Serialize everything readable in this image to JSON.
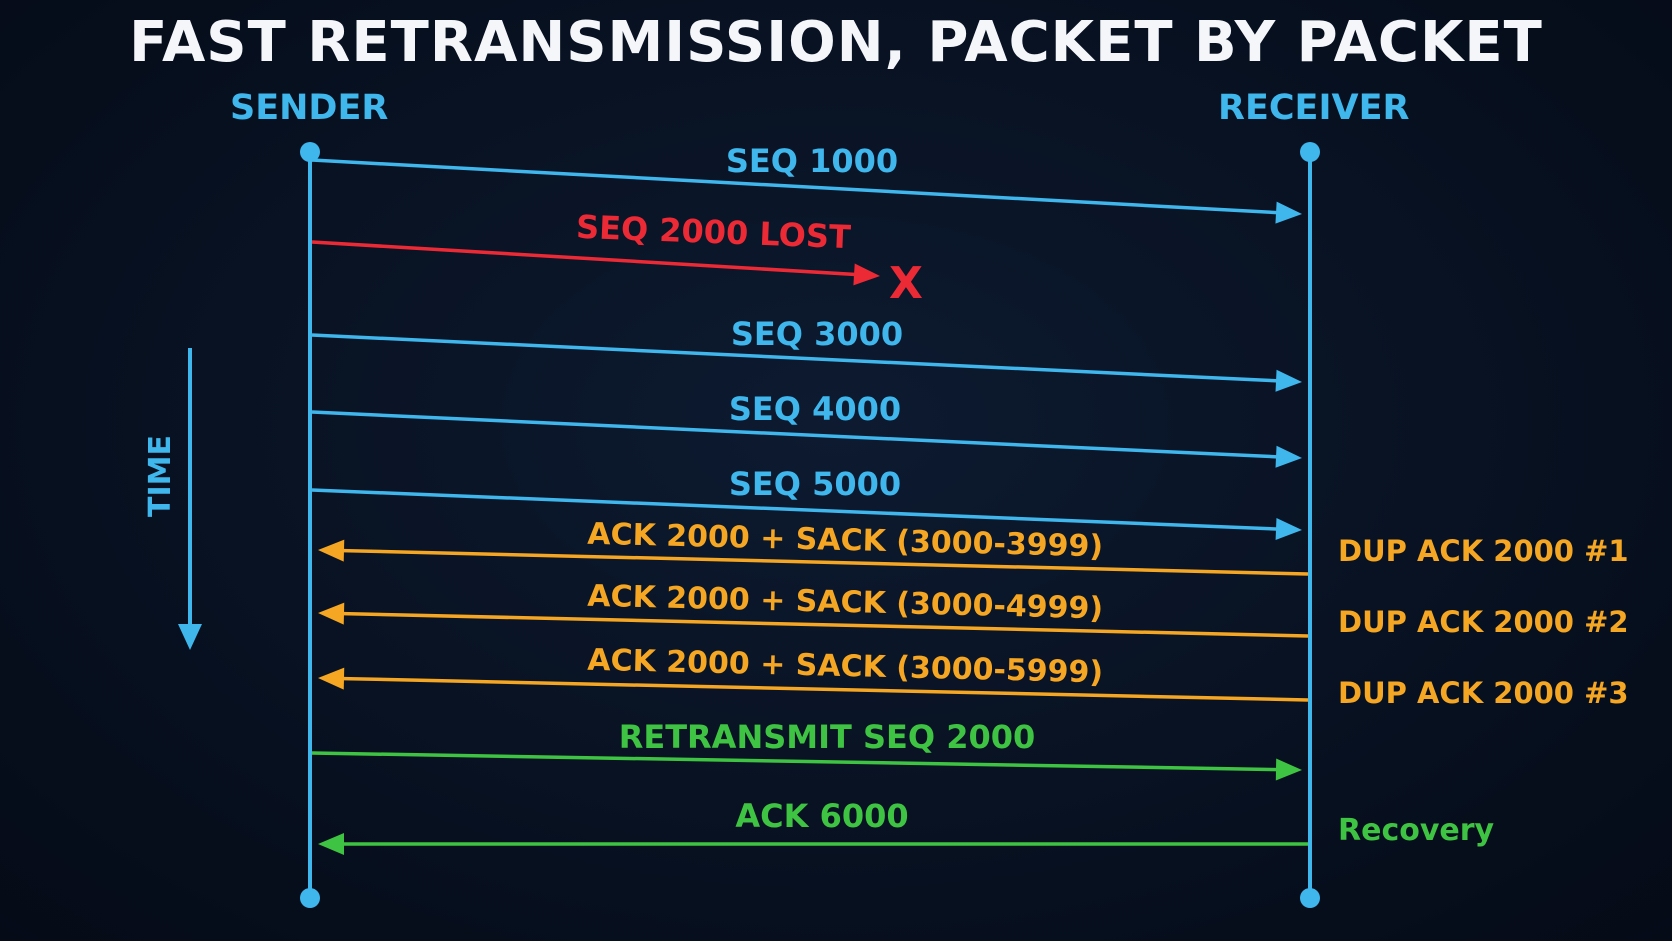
{
  "title": "FAST RETRANSMISSION, PACKET BY PACKET",
  "actors": {
    "sender": "SENDER",
    "receiver": "RECEIVER"
  },
  "time_label": "TIME",
  "lost_marker": "X",
  "colors": {
    "background": "#07101f",
    "data": "#3fb6ec",
    "lost": "#ec2a35",
    "ack": "#f5a623",
    "retransmit": "#3ec442",
    "title": "#f4f6fa"
  },
  "messages": [
    {
      "id": "seq-1000",
      "label": "SEQ 1000",
      "direction": "to-receiver",
      "kind": "data"
    },
    {
      "id": "seq-2000-lost",
      "label": "SEQ 2000 LOST",
      "direction": "to-receiver",
      "kind": "lost"
    },
    {
      "id": "seq-3000",
      "label": "SEQ 3000",
      "direction": "to-receiver",
      "kind": "data"
    },
    {
      "id": "seq-4000",
      "label": "SEQ 4000",
      "direction": "to-receiver",
      "kind": "data"
    },
    {
      "id": "seq-5000",
      "label": "SEQ 5000",
      "direction": "to-receiver",
      "kind": "data"
    },
    {
      "id": "ack-sack-1",
      "label": "ACK 2000 + SACK (3000-3999)",
      "direction": "to-sender",
      "kind": "ack",
      "note": "DUP ACK 2000 #1"
    },
    {
      "id": "ack-sack-2",
      "label": "ACK 2000 + SACK (3000-4999)",
      "direction": "to-sender",
      "kind": "ack",
      "note": "DUP ACK 2000 #2"
    },
    {
      "id": "ack-sack-3",
      "label": "ACK 2000 + SACK (3000-5999)",
      "direction": "to-sender",
      "kind": "ack",
      "note": "DUP ACK 2000 #3"
    },
    {
      "id": "retransmit-2000",
      "label": "RETRANSMIT SEQ 2000",
      "direction": "to-receiver",
      "kind": "retransmit"
    },
    {
      "id": "ack-6000",
      "label": "ACK 6000",
      "direction": "to-sender",
      "kind": "retransmit",
      "note": "Recovery"
    }
  ]
}
